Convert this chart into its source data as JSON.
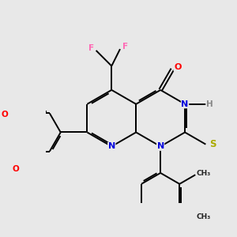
{
  "background_color": "#e8e8e8",
  "bond_color": "#000000",
  "atom_colors": {
    "N": "#0000dd",
    "O": "#ff0000",
    "F": "#ff69b4",
    "S": "#aaaa00",
    "H": "#888888",
    "C": "#000000"
  }
}
